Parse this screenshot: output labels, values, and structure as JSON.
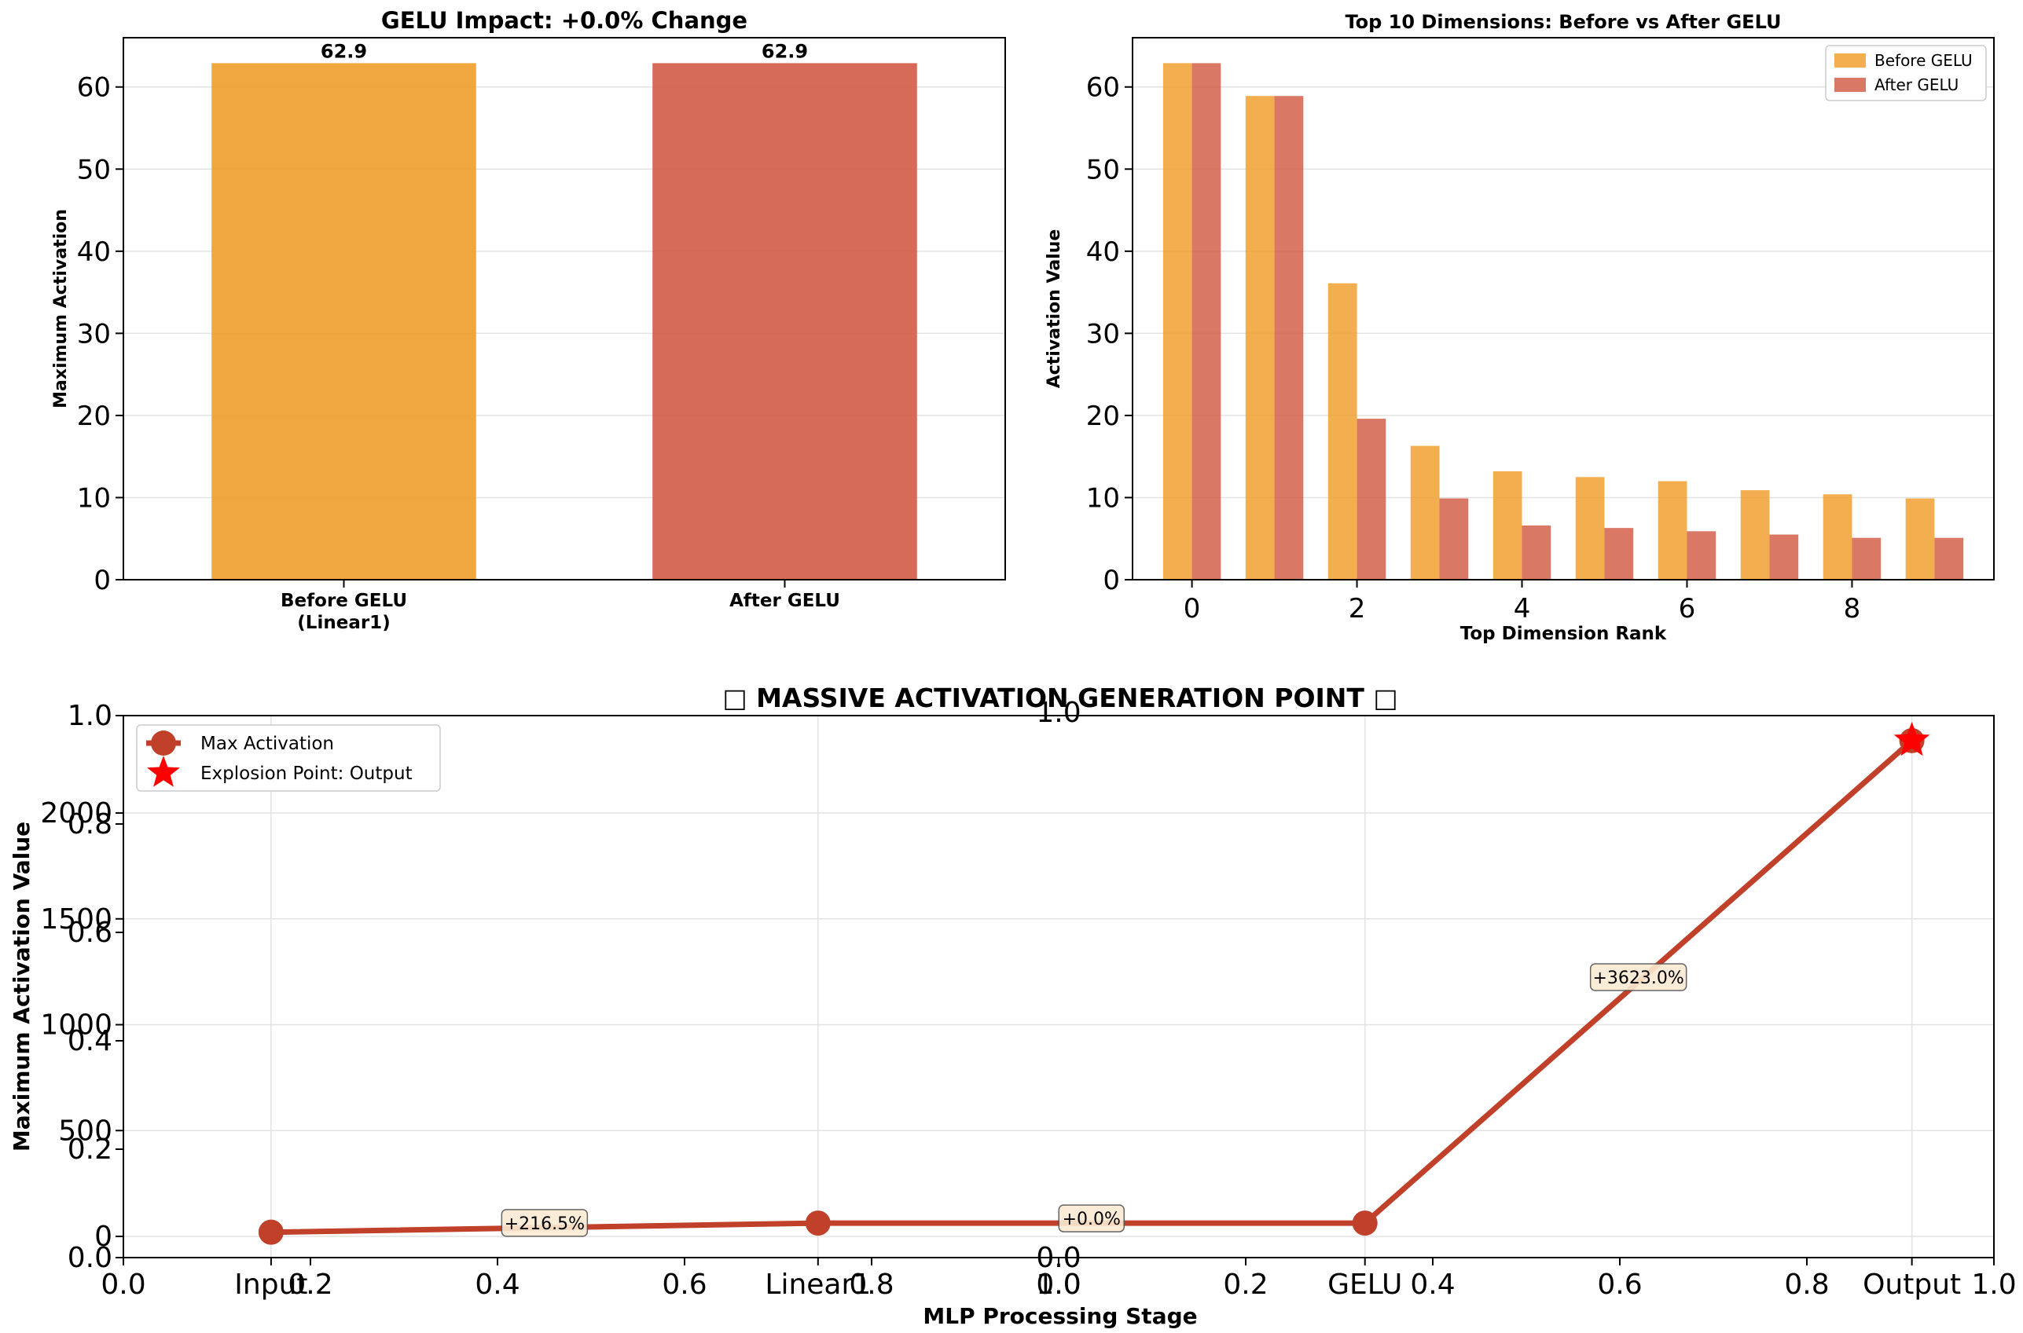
{
  "colors": {
    "before": "#F0A030",
    "after": "#D2604A",
    "line": "#C0402A",
    "star": "#FF0000",
    "annot_bg": "#FAEBD2"
  },
  "chart_data": [
    {
      "type": "bar",
      "title": "GELU Impact: +0.0% Change",
      "categories": [
        "Before GELU\n(Linear1)",
        "After GELU"
      ],
      "values": [
        62.9,
        62.9
      ],
      "data_labels": [
        "62.9",
        "62.9"
      ],
      "xlabel": "",
      "ylabel": "Maximum Activation",
      "ylim": [
        0,
        66
      ],
      "yticks": [
        0,
        10,
        20,
        30,
        40,
        50,
        60
      ],
      "grid": true
    },
    {
      "type": "bar",
      "title": "Top 10 Dimensions: Before vs After GELU",
      "x": [
        0,
        1,
        2,
        3,
        4,
        5,
        6,
        7,
        8,
        9
      ],
      "xticks": [
        0,
        2,
        4,
        6,
        8
      ],
      "series": [
        {
          "name": "Before GELU",
          "values": [
            62.9,
            58.9,
            36.1,
            16.3,
            13.2,
            12.5,
            12.0,
            10.9,
            10.4,
            9.9
          ]
        },
        {
          "name": "After GELU",
          "values": [
            62.9,
            58.9,
            19.6,
            9.9,
            6.6,
            6.3,
            5.9,
            5.5,
            5.1,
            5.1
          ]
        }
      ],
      "xlabel": "Top Dimension Rank",
      "ylabel": "Activation Value",
      "ylim": [
        0,
        66
      ],
      "yticks": [
        0,
        10,
        20,
        30,
        40,
        50,
        60
      ],
      "legend": "top-right",
      "grid": true
    },
    {
      "type": "line",
      "title": "□ MASSIVE ACTIVATION GENERATION POINT □",
      "categories": [
        "Input",
        "Linear1",
        "GELU",
        "Output"
      ],
      "series": [
        {
          "name": "Max Activation",
          "values": [
            19.9,
            62.9,
            62.9,
            2341.8
          ]
        }
      ],
      "markers": [
        {
          "name": "Explosion Point: Output",
          "category": "Output",
          "value": 2341.8
        }
      ],
      "annotations": [
        {
          "text": "+216.5%",
          "between": [
            "Input",
            "Linear1"
          ]
        },
        {
          "text": "+0.0%",
          "between": [
            "Linear1",
            "GELU"
          ]
        },
        {
          "text": "+3623.0%",
          "between": [
            "GELU",
            "Output"
          ]
        }
      ],
      "xlabel": "MLP Processing Stage",
      "ylabel": "Maximum Activation Value",
      "ylim": [
        -100,
        2460
      ],
      "yticks": [
        0,
        500,
        1000,
        1500,
        2000
      ],
      "ghost_axes": {
        "left_ticks": [
          "0.0",
          "0.2",
          "0.4",
          "0.6",
          "0.8",
          "1.0"
        ],
        "bottom_ticks_a": [
          "0.0",
          "0.2",
          "0.4",
          "0.6",
          "0.8",
          "1.0"
        ],
        "bottom_ticks_b": [
          "0.0",
          "0.2",
          "0.4",
          "0.6",
          "0.8",
          "1.0"
        ],
        "overlay_top": "1.0",
        "overlay_bottom": "0.0"
      },
      "legend": "top-left",
      "grid": true
    }
  ]
}
